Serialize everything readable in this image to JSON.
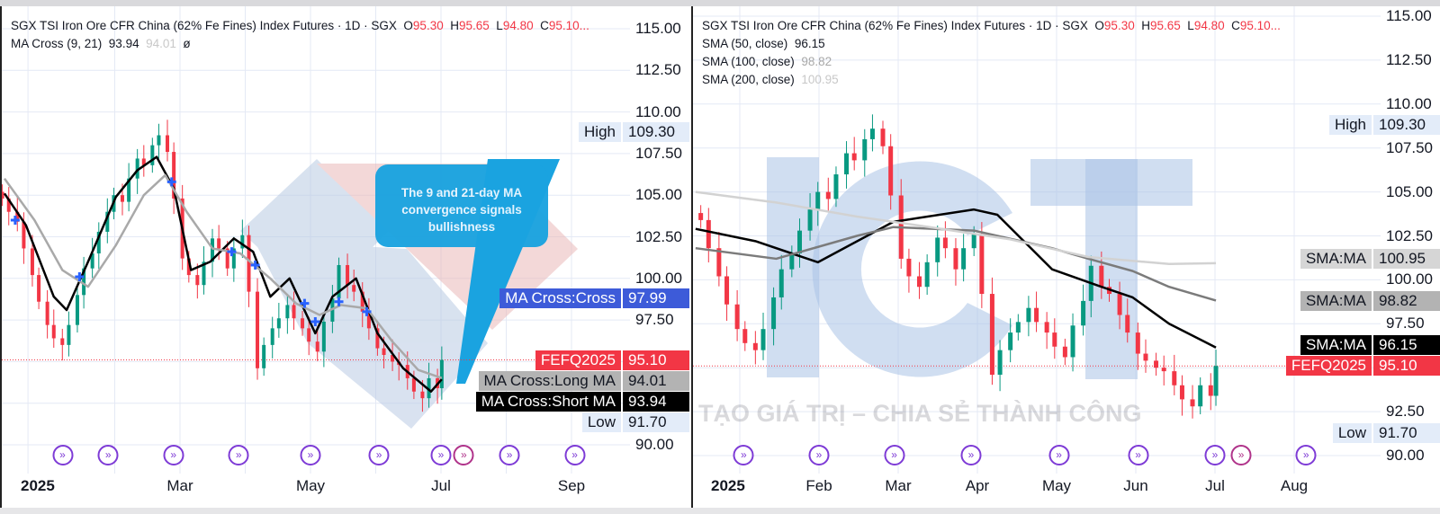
{
  "chart_data": [
    {
      "type": "candlestick",
      "title": "SGX TSI Iron Ore CFR China (62% Fe Fines) Index Futures · 1D · SGX",
      "ohlc_readout": {
        "O": "95.30",
        "H": "95.65",
        "L": "94.80",
        "C": "95.10..."
      },
      "indicator_legend": {
        "name": "MA Cross (9, 21)",
        "short": "93.94",
        "long": "94.01",
        "hidden_glyph": "ø"
      },
      "ylim": [
        90,
        115
      ],
      "yticks": [
        "115.00",
        "112.50",
        "110.00",
        "107.50",
        "105.00",
        "102.50",
        "100.00",
        "97.50",
        "90.00"
      ],
      "xticks": [
        "2025",
        "Mar",
        "May",
        "Jul",
        "Sep"
      ],
      "price": {
        "dates": [
          "2024-12-10",
          "2024-12-13",
          "2024-12-17",
          "2024-12-20",
          "2024-12-24",
          "2024-12-27",
          "2024-12-31",
          "2025-01-03",
          "2025-01-07",
          "2025-01-10",
          "2025-01-14",
          "2025-01-17",
          "2025-01-21",
          "2025-01-24",
          "2025-01-28",
          "2025-01-31",
          "2025-02-04",
          "2025-02-07",
          "2025-02-11",
          "2025-02-14",
          "2025-02-18",
          "2025-02-21",
          "2025-02-25",
          "2025-02-28",
          "2025-03-04",
          "2025-03-07",
          "2025-03-11",
          "2025-03-14",
          "2025-03-18",
          "2025-03-21",
          "2025-03-25",
          "2025-03-28",
          "2025-04-01",
          "2025-04-04",
          "2025-04-08",
          "2025-04-11",
          "2025-04-15",
          "2025-04-18",
          "2025-04-22",
          "2025-04-25",
          "2025-04-29",
          "2025-05-02",
          "2025-05-06",
          "2025-05-09",
          "2025-05-13",
          "2025-05-16",
          "2025-05-20",
          "2025-05-23",
          "2025-05-27",
          "2025-05-30",
          "2025-06-03",
          "2025-06-06",
          "2025-06-10",
          "2025-06-13",
          "2025-06-17",
          "2025-06-20",
          "2025-06-24",
          "2025-06-27",
          "2025-07-01",
          "2025-07-03"
        ],
        "closes": [
          104.8,
          104.0,
          103.4,
          101.8,
          100.2,
          98.6,
          97.2,
          96.4,
          96.0,
          97.2,
          99.0,
          100.6,
          101.5,
          102.8,
          104.0,
          105.0,
          104.6,
          106.0,
          107.2,
          106.8,
          108.0,
          108.6,
          107.6,
          104.8,
          101.2,
          100.2,
          99.6,
          101.0,
          102.4,
          101.8,
          100.6,
          101.8,
          102.6,
          99.2,
          94.6,
          96.0,
          97.0,
          97.6,
          98.4,
          97.6,
          97.0,
          96.2,
          95.6,
          97.4,
          98.8,
          100.8,
          99.6,
          99.2,
          98.0,
          97.0,
          95.8,
          95.4,
          95.0,
          94.8,
          94.0,
          93.2,
          92.8,
          94.0,
          93.4,
          95.1
        ]
      },
      "series": [
        {
          "name": "MA Cross:Short MA",
          "color": "#000000",
          "points": [
            [
              "2024-12-11",
              105.1
            ],
            [
              "2024-12-21",
              103.2
            ],
            [
              "2025-01-03",
              98.9
            ],
            [
              "2025-01-09",
              98.1
            ],
            [
              "2025-01-19",
              101.0
            ],
            [
              "2025-02-01",
              104.9
            ],
            [
              "2025-02-11",
              106.5
            ],
            [
              "2025-02-20",
              107.3
            ],
            [
              "2025-02-28",
              105.4
            ],
            [
              "2025-03-08",
              100.5
            ],
            [
              "2025-03-17",
              101.0
            ],
            [
              "2025-03-28",
              102.4
            ],
            [
              "2025-04-06",
              101.6
            ],
            [
              "2025-04-14",
              98.9
            ],
            [
              "2025-04-23",
              100.0
            ],
            [
              "2025-05-05",
              96.7
            ],
            [
              "2025-05-13",
              98.9
            ],
            [
              "2025-05-24",
              100.0
            ],
            [
              "2025-06-03",
              96.7
            ],
            [
              "2025-06-15",
              94.6
            ],
            [
              "2025-06-28",
              93.2
            ],
            [
              "2025-07-03",
              93.94
            ]
          ]
        },
        {
          "name": "MA Cross:Long MA",
          "color": "#a9a9a9",
          "points": [
            [
              "2024-12-11",
              106.0
            ],
            [
              "2024-12-25",
              103.5
            ],
            [
              "2025-01-07",
              100.5
            ],
            [
              "2025-01-19",
              99.5
            ],
            [
              "2025-02-01",
              102.0
            ],
            [
              "2025-02-14",
              105.0
            ],
            [
              "2025-02-24",
              106.2
            ],
            [
              "2025-03-06",
              104.0
            ],
            [
              "2025-03-18",
              101.8
            ],
            [
              "2025-03-31",
              101.5
            ],
            [
              "2025-04-14",
              100.0
            ],
            [
              "2025-04-26",
              98.5
            ],
            [
              "2025-05-07",
              97.8
            ],
            [
              "2025-05-17",
              98.4
            ],
            [
              "2025-05-29",
              98.2
            ],
            [
              "2025-06-10",
              96.2
            ],
            [
              "2025-06-22",
              94.5
            ],
            [
              "2025-07-03",
              94.01
            ]
          ]
        }
      ],
      "cross_points": [
        [
          "2024-12-16",
          103.5
        ],
        [
          "2025-01-15",
          100.1
        ],
        [
          "2025-02-27",
          105.8
        ],
        [
          "2025-03-27",
          101.6
        ],
        [
          "2025-04-07",
          100.8
        ],
        [
          "2025-04-30",
          98.5
        ],
        [
          "2025-05-05",
          97.4
        ],
        [
          "2025-05-16",
          98.6
        ],
        [
          "2025-05-29",
          98.0
        ]
      ],
      "price_labels": [
        {
          "name": "High",
          "value": "109.30",
          "style": "plain"
        },
        {
          "name": "MA Cross:Cross",
          "value": "97.99",
          "style": "blue"
        },
        {
          "name": "FEFQ2025",
          "value": "95.10",
          "style": "red"
        },
        {
          "name": "MA Cross:Long MA",
          "value": "94.01",
          "style": "gray"
        },
        {
          "name": "MA Cross:Short MA",
          "value": "93.94",
          "style": "black"
        },
        {
          "name": "Low",
          "value": "91.70",
          "style": "plain"
        }
      ],
      "last_price": 95.1,
      "annotation": "The 9 and 21-day MA convergence signals bullishness",
      "colors": {
        "up": "#089981",
        "down": "#f23645",
        "cross": "#2962ff",
        "annotation": "#1aa3e0"
      }
    },
    {
      "type": "candlestick",
      "title": "SGX TSI Iron Ore CFR China (62% Fe Fines) Index Futures · 1D · SGX",
      "ohlc_readout": {
        "O": "95.30",
        "H": "95.65",
        "L": "94.80",
        "C": "95.10..."
      },
      "indicator_legend": [
        {
          "name": "SMA (50, close)",
          "value": "96.15"
        },
        {
          "name": "SMA (100, close)",
          "value": "98.82"
        },
        {
          "name": "SMA (200, close)",
          "value": "100.95"
        }
      ],
      "ylim": [
        90,
        115
      ],
      "yticks": [
        "115.00",
        "112.50",
        "110.00",
        "107.50",
        "105.00",
        "102.50",
        "100.00",
        "97.50",
        "92.50",
        "90.00"
      ],
      "xticks": [
        "2025",
        "Feb",
        "Mar",
        "Apr",
        "May",
        "Jun",
        "Jul",
        "Aug"
      ],
      "price": {
        "dates": [
          "2024-12-17",
          "2024-12-20",
          "2024-12-24",
          "2024-12-27",
          "2024-12-31",
          "2025-01-03",
          "2025-01-07",
          "2025-01-10",
          "2025-01-14",
          "2025-01-17",
          "2025-01-21",
          "2025-01-24",
          "2025-01-28",
          "2025-01-31",
          "2025-02-04",
          "2025-02-07",
          "2025-02-11",
          "2025-02-14",
          "2025-02-18",
          "2025-02-21",
          "2025-02-25",
          "2025-02-28",
          "2025-03-04",
          "2025-03-07",
          "2025-03-11",
          "2025-03-14",
          "2025-03-18",
          "2025-03-21",
          "2025-03-25",
          "2025-03-28",
          "2025-04-01",
          "2025-04-04",
          "2025-04-08",
          "2025-04-11",
          "2025-04-15",
          "2025-04-18",
          "2025-04-22",
          "2025-04-25",
          "2025-04-29",
          "2025-05-02",
          "2025-05-06",
          "2025-05-09",
          "2025-05-13",
          "2025-05-16",
          "2025-05-20",
          "2025-05-23",
          "2025-05-27",
          "2025-05-30",
          "2025-06-03",
          "2025-06-06",
          "2025-06-10",
          "2025-06-13",
          "2025-06-17",
          "2025-06-20",
          "2025-06-24",
          "2025-06-27",
          "2025-07-01",
          "2025-07-03"
        ],
        "closes": [
          103.4,
          101.8,
          100.2,
          98.6,
          97.2,
          96.4,
          96.0,
          97.2,
          99.0,
          100.6,
          101.5,
          102.8,
          104.0,
          105.0,
          104.6,
          106.0,
          107.2,
          106.8,
          108.0,
          108.6,
          107.6,
          104.8,
          101.2,
          100.2,
          99.6,
          101.0,
          102.4,
          101.8,
          100.6,
          101.8,
          102.6,
          99.2,
          94.6,
          96.0,
          97.0,
          97.6,
          98.4,
          97.6,
          97.0,
          96.2,
          95.6,
          97.4,
          98.8,
          100.8,
          99.6,
          99.2,
          98.0,
          97.0,
          95.8,
          95.4,
          95.0,
          94.8,
          94.0,
          93.2,
          92.8,
          94.0,
          93.4,
          95.1
        ]
      },
      "series": [
        {
          "name": "SMA (50, close)",
          "color": "#000000",
          "points": [
            [
              "2024-12-15",
              102.9
            ],
            [
              "2025-01-07",
              102.2
            ],
            [
              "2025-01-31",
              101.0
            ],
            [
              "2025-03-01",
              103.3
            ],
            [
              "2025-04-01",
              104.0
            ],
            [
              "2025-04-10",
              103.7
            ],
            [
              "2025-05-01",
              100.6
            ],
            [
              "2025-05-20",
              99.6
            ],
            [
              "2025-06-01",
              99.0
            ],
            [
              "2025-06-15",
              97.5
            ],
            [
              "2025-07-03",
              96.15
            ]
          ]
        },
        {
          "name": "SMA (100, close)",
          "color": "#7b7b7b",
          "points": [
            [
              "2024-12-15",
              101.8
            ],
            [
              "2025-01-15",
              101.2
            ],
            [
              "2025-02-15",
              102.5
            ],
            [
              "2025-03-01",
              103.0
            ],
            [
              "2025-04-01",
              102.8
            ],
            [
              "2025-05-01",
              101.8
            ],
            [
              "2025-05-15",
              101.2
            ],
            [
              "2025-06-01",
              100.5
            ],
            [
              "2025-06-15",
              99.6
            ],
            [
              "2025-07-03",
              98.82
            ]
          ]
        },
        {
          "name": "SMA (200, close)",
          "color": "#d2d2d2",
          "points": [
            [
              "2024-12-15",
              105.0
            ],
            [
              "2025-01-15",
              104.4
            ],
            [
              "2025-02-15",
              103.6
            ],
            [
              "2025-03-15",
              103.0
            ],
            [
              "2025-04-15",
              102.3
            ],
            [
              "2025-05-15",
              101.3
            ],
            [
              "2025-06-15",
              100.9
            ],
            [
              "2025-07-03",
              100.95
            ]
          ]
        }
      ],
      "price_labels": [
        {
          "name": "High",
          "value": "109.30",
          "style": "plain"
        },
        {
          "name": "SMA:MA",
          "value": "100.95",
          "style": "lightgray"
        },
        {
          "name": "SMA:MA",
          "value": "98.82",
          "style": "gray"
        },
        {
          "name": "SMA:MA",
          "value": "96.15",
          "style": "black"
        },
        {
          "name": "FEFQ2025",
          "value": "95.10",
          "style": "red"
        },
        {
          "name": "Low",
          "value": "91.70",
          "style": "plain"
        }
      ],
      "last_price": 95.1,
      "watermark_logo": "ICT",
      "watermark_text": "A TẠO GIÁ TRỊ – CHIA SẺ THÀNH CÔNG",
      "colors": {
        "up": "#089981",
        "down": "#f23645"
      }
    }
  ],
  "event_icon": "dividend-arrow-icon"
}
